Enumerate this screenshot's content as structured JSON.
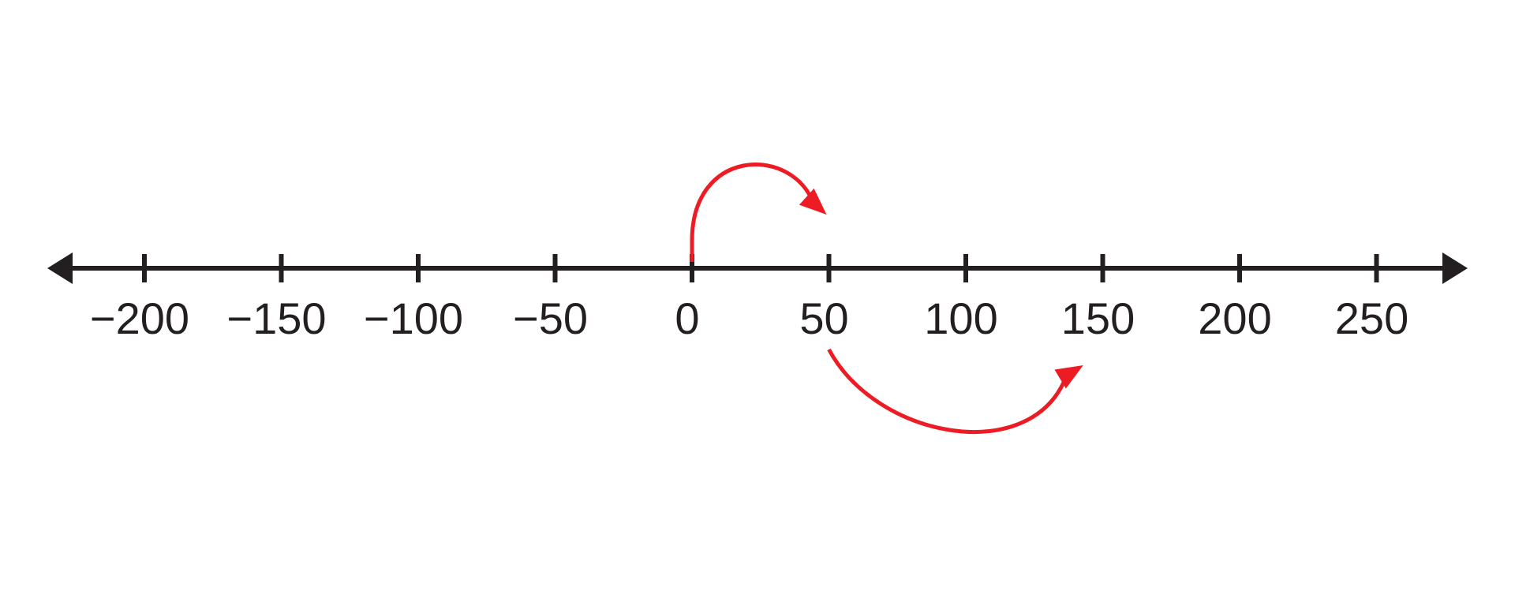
{
  "number_line": {
    "min": -225,
    "max": 275,
    "tick_start": -200,
    "tick_end": 250,
    "tick_step": 50,
    "tick_labels": [
      "−200",
      "−150",
      "−100",
      "−50",
      "0",
      "50",
      "100",
      "150",
      "200",
      "250"
    ],
    "arrows_both_ends": true
  },
  "jumps": [
    {
      "from": 0,
      "to": 50,
      "side": "above"
    },
    {
      "from": 50,
      "to": 140,
      "side": "below"
    }
  ],
  "colors": {
    "line": "#231f20",
    "jump_arrow": "#ed1c24",
    "background": "#ffffff"
  }
}
